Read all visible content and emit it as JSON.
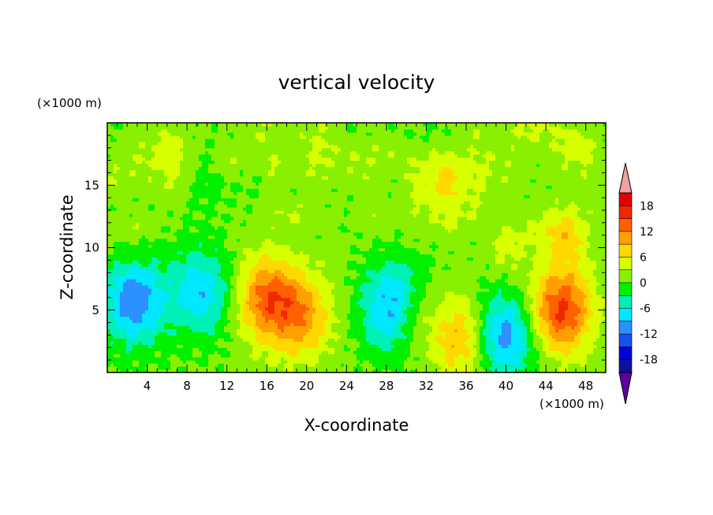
{
  "chart_data": {
    "type": "heatmap",
    "title": "vertical velocity",
    "xlabel": "X-coordinate",
    "ylabel": "Z-coordinate",
    "x_unit": "(×1000 m)",
    "y_unit": "(×1000 m)",
    "xlim": [
      0,
      50
    ],
    "ylim": [
      0,
      20
    ],
    "x_ticks": [
      "4",
      "8",
      "12",
      "16",
      "20",
      "24",
      "28",
      "32",
      "36",
      "40",
      "44",
      "48"
    ],
    "y_ticks": [
      "5",
      "10",
      "15"
    ],
    "colorbar": {
      "ticks": [
        "18",
        "12",
        "6",
        "0",
        "-6",
        "-12",
        "-18"
      ],
      "levels": [
        -21,
        -18,
        -15,
        -12,
        -9,
        -6,
        -3,
        0,
        3,
        6,
        9,
        12,
        15,
        18,
        21
      ],
      "colors": [
        "#5e00a0",
        "#1010a0",
        "#0000d8",
        "#1650f0",
        "#2c90ff",
        "#00e8ff",
        "#00f0b8",
        "#00f000",
        "#88f000",
        "#d8ff00",
        "#ffd800",
        "#ffa000",
        "#ff6000",
        "#f02800",
        "#e00000",
        "#f0a0a0"
      ],
      "extend": "both"
    },
    "features": [
      {
        "x": 2.7,
        "z": 5.8,
        "value": -12
      },
      {
        "x": 9.5,
        "z": 6.5,
        "value": -9
      },
      {
        "x": 16.0,
        "z": 6.0,
        "value": 12
      },
      {
        "x": 19.5,
        "z": 4.5,
        "value": 9
      },
      {
        "x": 28.8,
        "z": 5.2,
        "value": -12
      },
      {
        "x": 30.5,
        "z": 4.5,
        "value": 6
      },
      {
        "x": 35.5,
        "z": 2.8,
        "value": 9
      },
      {
        "x": 39.8,
        "z": 3.0,
        "value": -12
      },
      {
        "x": 45.5,
        "z": 5.0,
        "value": 15
      },
      {
        "x": 46.0,
        "z": 11.0,
        "value": 6
      },
      {
        "x": 6.0,
        "z": 17.5,
        "value": 3
      },
      {
        "x": 37.0,
        "z": 16.5,
        "value": 3
      },
      {
        "x": 34.0,
        "z": 15.0,
        "value": 3
      }
    ]
  }
}
